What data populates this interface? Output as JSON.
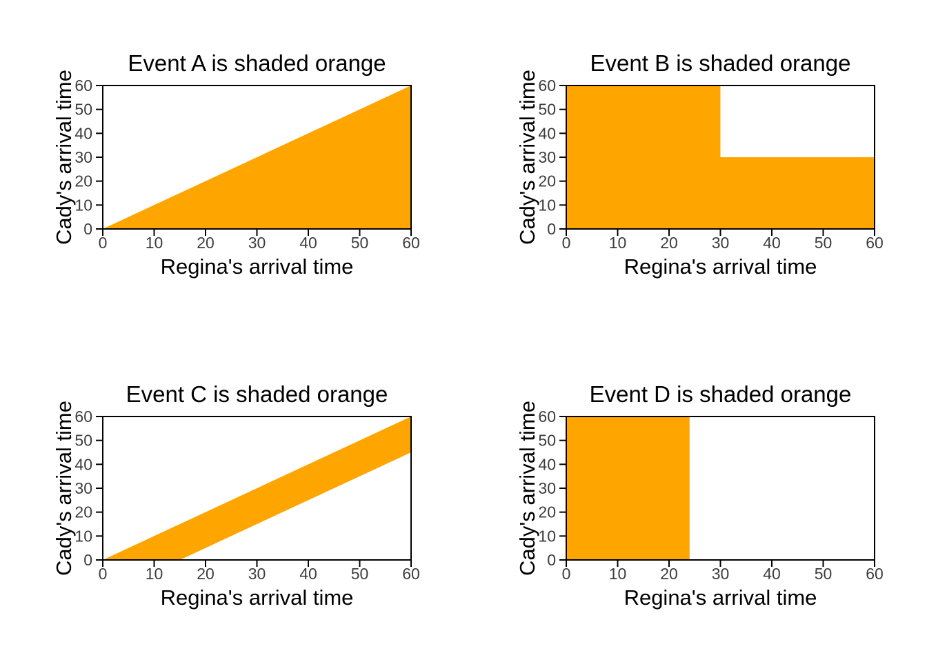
{
  "figure": {
    "background_color": "#ffffff",
    "box_color": "#000000",
    "tick_color": "#000000",
    "tick_label_color": "#3d3d3d",
    "title_color": "#000000",
    "axis_label_color": "#000000",
    "orange_fill": "#FFA500",
    "layout": "2x2 grid of region plots"
  },
  "chart_data": [
    {
      "type": "area",
      "title": "Event A is shaded orange",
      "xlabel": "Regina's arrival time",
      "ylabel": "Cady's arrival time",
      "xlim": [
        0,
        60
      ],
      "ylim": [
        0,
        60
      ],
      "xticks": [
        0,
        10,
        20,
        30,
        40,
        50,
        60
      ],
      "yticks": [
        0,
        10,
        20,
        30,
        40,
        50,
        60
      ],
      "grid": false,
      "legend": false,
      "region_fill": "#FFA500",
      "region_description": "y <= x (triangle below the diagonal)",
      "region_polygon": [
        [
          0,
          0
        ],
        [
          60,
          0
        ],
        [
          60,
          60
        ]
      ]
    },
    {
      "type": "area",
      "title": "Event B is shaded orange",
      "xlabel": "Regina's arrival time",
      "ylabel": "Cady's arrival time",
      "xlim": [
        0,
        60
      ],
      "ylim": [
        0,
        60
      ],
      "xticks": [
        0,
        10,
        20,
        30,
        40,
        50,
        60
      ],
      "yticks": [
        0,
        10,
        20,
        30,
        40,
        50,
        60
      ],
      "grid": false,
      "legend": false,
      "region_fill": "#FFA500",
      "region_description": "x <= 30 or y <= 30 (all except the block x>30 and y>30)",
      "region_polygon": [
        [
          0,
          0
        ],
        [
          60,
          0
        ],
        [
          60,
          30
        ],
        [
          30,
          30
        ],
        [
          30,
          60
        ],
        [
          0,
          60
        ]
      ]
    },
    {
      "type": "area",
      "title": "Event C is shaded orange",
      "xlabel": "Regina's arrival time",
      "ylabel": "Cady's arrival time",
      "xlim": [
        0,
        60
      ],
      "ylim": [
        0,
        60
      ],
      "xticks": [
        0,
        10,
        20,
        30,
        40,
        50,
        60
      ],
      "yticks": [
        0,
        10,
        20,
        30,
        40,
        50,
        60
      ],
      "grid": false,
      "legend": false,
      "region_fill": "#FFA500",
      "region_description": "band between y = x and y = x - 15",
      "region_polygon": [
        [
          0,
          0
        ],
        [
          15,
          0
        ],
        [
          60,
          45
        ],
        [
          60,
          60
        ]
      ]
    },
    {
      "type": "area",
      "title": "Event D is shaded orange",
      "xlabel": "Regina's arrival time",
      "ylabel": "Cady's arrival time",
      "xlim": [
        0,
        60
      ],
      "ylim": [
        0,
        60
      ],
      "xticks": [
        0,
        10,
        20,
        30,
        40,
        50,
        60
      ],
      "yticks": [
        0,
        10,
        20,
        30,
        40,
        50,
        60
      ],
      "grid": false,
      "legend": false,
      "region_fill": "#FFA500",
      "region_description": "x <= 24 (vertical strip at left)",
      "region_polygon": [
        [
          0,
          0
        ],
        [
          24,
          0
        ],
        [
          24,
          60
        ],
        [
          0,
          60
        ]
      ]
    }
  ]
}
